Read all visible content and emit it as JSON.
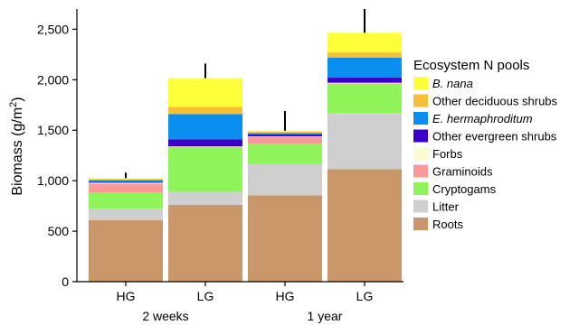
{
  "chart_data": {
    "type": "bar",
    "stacked": true,
    "ylabel": "Biomass (g/m",
    "ylabel_sup": "2",
    "ylabel_close": ")",
    "ylim": [
      0,
      2700
    ],
    "yticks": [
      0,
      500,
      1000,
      1500,
      2000,
      2500
    ],
    "ytick_labels": [
      "0",
      "500",
      "1,000",
      "1,500",
      "2,000",
      "2,500"
    ],
    "categories": [
      "HG",
      "LG",
      "HG",
      "LG"
    ],
    "groups": [
      {
        "label": "2 weeks",
        "categories": [
          0,
          1
        ]
      },
      {
        "label": "1 year",
        "categories": [
          2,
          3
        ]
      }
    ],
    "legend_title": "Ecosystem N pools",
    "legend_position": "right",
    "series": [
      {
        "name": "Roots",
        "color": "#c9976a",
        "values": [
          610,
          760,
          855,
          1115
        ]
      },
      {
        "name": "Litter",
        "color": "#cfcfcf",
        "values": [
          115,
          130,
          310,
          555
        ]
      },
      {
        "name": "Cryptogams",
        "color": "#8ef45a",
        "values": [
          160,
          440,
          200,
          290
        ]
      },
      {
        "name": "Graminoids",
        "color": "#f99a9a",
        "values": [
          85,
          5,
          70,
          5
        ]
      },
      {
        "name": "Forbs",
        "color": "#fffbd0",
        "values": [
          10,
          5,
          5,
          5
        ]
      },
      {
        "name": "Other evergreen shrubs",
        "color": "#3b00c8",
        "values": [
          10,
          70,
          20,
          50
        ]
      },
      {
        "name": "E. hermaphroditum",
        "italic": true,
        "color": "#0a8ef0",
        "values": [
          15,
          250,
          10,
          200
        ]
      },
      {
        "name": "Other deciduous shrubs",
        "color": "#f7bf34",
        "values": [
          10,
          70,
          15,
          50
        ]
      },
      {
        "name": "B. nana",
        "italic": true,
        "color": "#ffff3a",
        "values": [
          10,
          285,
          10,
          195
        ]
      }
    ],
    "error_bars_upper": [
      1080,
      2160,
      1690,
      2700
    ]
  }
}
